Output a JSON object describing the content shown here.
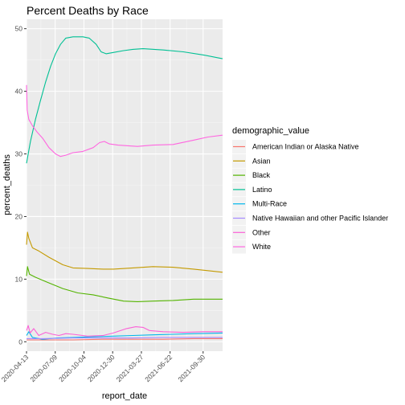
{
  "chart_data": {
    "type": "line",
    "title": "Percent Deaths by Race",
    "xlabel": "report_date",
    "ylabel": "percent_deaths",
    "xlim": [
      "2020-04-13",
      "2021-11-28"
    ],
    "ylim": [
      -1.5,
      51.5
    ],
    "x_ticks": [
      "2020-04-13",
      "2020-07-09",
      "2020-10-04",
      "2020-12-30",
      "2021-03-27",
      "2021-06-22",
      "2021-09-30"
    ],
    "y_ticks": [
      0,
      10,
      20,
      30,
      40,
      50
    ],
    "grid": true,
    "legend": {
      "title": "demographic_value",
      "position": "right"
    },
    "colors": {
      "American Indian or Alaska Native": "#F8766D",
      "Asian": "#C49A00",
      "Black": "#53B400",
      "Latino": "#00C094",
      "Multi-Race": "#00B6EB",
      "Native Hawaiian and other Pacific Islander": "#A58AFF",
      "Other": "#FB61D7",
      "White": "#FF66E0"
    },
    "series": [
      {
        "name": "American Indian or Alaska Native",
        "x": [
          "2020-04-13",
          "2020-06-01",
          "2020-09-01",
          "2020-12-01",
          "2021-03-01",
          "2021-06-01",
          "2021-09-01",
          "2021-11-28"
        ],
        "values": [
          0.3,
          0.3,
          0.3,
          0.4,
          0.4,
          0.4,
          0.5,
          0.5
        ]
      },
      {
        "name": "Asian",
        "x": [
          "2020-04-13",
          "2020-04-16",
          "2020-04-20",
          "2020-05-01",
          "2020-05-20",
          "2020-06-20",
          "2020-08-01",
          "2020-09-01",
          "2020-10-15",
          "2020-12-01",
          "2021-01-01",
          "2021-03-01",
          "2021-05-01",
          "2021-07-01",
          "2021-09-01",
          "2021-11-28"
        ],
        "values": [
          15.5,
          17.5,
          16.5,
          15.0,
          14.5,
          13.5,
          12.3,
          11.8,
          11.7,
          11.6,
          11.6,
          11.8,
          12.0,
          11.9,
          11.6,
          11.1
        ]
      },
      {
        "name": "Black",
        "x": [
          "2020-04-13",
          "2020-04-16",
          "2020-04-22",
          "2020-05-10",
          "2020-06-15",
          "2020-08-01",
          "2020-09-15",
          "2020-11-01",
          "2020-12-15",
          "2021-02-01",
          "2021-03-15",
          "2021-05-01",
          "2021-07-01",
          "2021-09-01",
          "2021-11-28"
        ],
        "values": [
          10.5,
          12.0,
          10.8,
          10.3,
          9.5,
          8.5,
          7.8,
          7.5,
          7.0,
          6.5,
          6.4,
          6.5,
          6.6,
          6.8,
          6.8
        ]
      },
      {
        "name": "Latino",
        "x": [
          "2020-04-13",
          "2020-04-25",
          "2020-05-10",
          "2020-05-25",
          "2020-06-10",
          "2020-06-25",
          "2020-07-10",
          "2020-07-25",
          "2020-08-10",
          "2020-09-01",
          "2020-10-01",
          "2020-10-20",
          "2020-11-10",
          "2020-11-25",
          "2020-12-10",
          "2021-01-01",
          "2021-02-01",
          "2021-03-01",
          "2021-04-01",
          "2021-06-01",
          "2021-08-01",
          "2021-10-01",
          "2021-11-28"
        ],
        "values": [
          28.5,
          32.0,
          35.5,
          38.5,
          41.5,
          44.0,
          46.0,
          47.5,
          48.5,
          48.7,
          48.7,
          48.5,
          47.5,
          46.3,
          46.0,
          46.2,
          46.5,
          46.7,
          46.8,
          46.6,
          46.3,
          45.8,
          45.2
        ]
      },
      {
        "name": "Multi-Race",
        "x": [
          "2020-04-13",
          "2020-04-20",
          "2020-05-01",
          "2020-06-01",
          "2020-07-15",
          "2020-09-01",
          "2020-11-01",
          "2021-01-01",
          "2021-03-01",
          "2021-05-01",
          "2021-07-01",
          "2021-09-01",
          "2021-11-28"
        ],
        "values": [
          1.0,
          1.6,
          0.7,
          0.4,
          0.6,
          0.7,
          0.8,
          0.9,
          1.0,
          1.1,
          1.2,
          1.3,
          1.4
        ]
      },
      {
        "name": "Native Hawaiian and other Pacific Islander",
        "x": [
          "2020-04-13",
          "2020-06-01",
          "2020-09-01",
          "2020-12-01",
          "2021-03-01",
          "2021-06-01",
          "2021-09-01",
          "2021-11-28"
        ],
        "values": [
          0.5,
          0.5,
          0.6,
          0.6,
          0.6,
          0.7,
          0.7,
          0.7
        ]
      },
      {
        "name": "Other",
        "x": [
          "2020-04-13",
          "2020-04-18",
          "2020-04-24",
          "2020-05-05",
          "2020-05-20",
          "2020-06-10",
          "2020-07-01",
          "2020-07-20",
          "2020-08-10",
          "2020-09-01",
          "2020-10-15",
          "2020-12-01",
          "2021-01-01",
          "2021-02-10",
          "2021-03-10",
          "2021-04-01",
          "2021-04-20",
          "2021-06-01",
          "2021-08-01",
          "2021-10-01",
          "2021-11-28"
        ],
        "values": [
          1.8,
          2.6,
          1.4,
          2.1,
          1.0,
          1.5,
          1.2,
          1.0,
          1.3,
          1.2,
          0.9,
          1.0,
          1.4,
          2.1,
          2.4,
          2.3,
          1.8,
          1.6,
          1.5,
          1.6,
          1.6
        ]
      },
      {
        "name": "White",
        "x": [
          "2020-04-13",
          "2020-04-15",
          "2020-04-20",
          "2020-05-01",
          "2020-05-15",
          "2020-06-01",
          "2020-06-20",
          "2020-07-10",
          "2020-07-25",
          "2020-08-10",
          "2020-09-01",
          "2020-10-01",
          "2020-11-01",
          "2020-11-20",
          "2020-12-05",
          "2020-12-20",
          "2021-01-15",
          "2021-02-15",
          "2021-03-15",
          "2021-05-01",
          "2021-07-01",
          "2021-09-01",
          "2021-10-15",
          "2021-11-28"
        ],
        "values": [
          41.0,
          37.0,
          35.5,
          34.5,
          33.5,
          32.5,
          31.0,
          30.0,
          29.6,
          29.8,
          30.2,
          30.4,
          31.0,
          31.8,
          32.0,
          31.6,
          31.4,
          31.3,
          31.2,
          31.4,
          31.5,
          32.2,
          32.7,
          33.0
        ]
      }
    ]
  }
}
